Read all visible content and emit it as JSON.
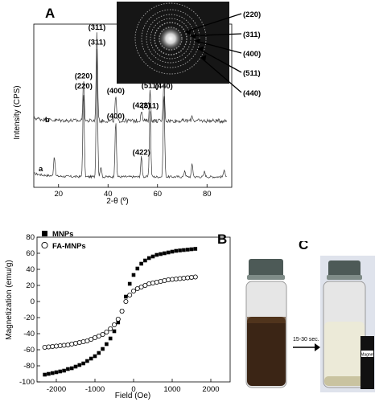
{
  "panels": {
    "A": "A",
    "B": "B",
    "C": "C"
  },
  "chart_data": [
    {
      "type": "line",
      "panel": "A",
      "xlabel": "2-θ (º)",
      "ylabel": "Intensity (CPS)",
      "xlim": [
        10,
        90
      ],
      "xticks": [
        20,
        40,
        60,
        80
      ],
      "series": [
        {
          "name": "a",
          "peaks": [
            {
              "x": 18.3,
              "h": 0.15
            },
            {
              "x": 30.1,
              "h": 0.65,
              "label": "(220)"
            },
            {
              "x": 35.5,
              "h": 0.98,
              "label": "(311)"
            },
            {
              "x": 37.1,
              "h": 0.08
            },
            {
              "x": 43.1,
              "h": 0.42,
              "label": "(400)"
            },
            {
              "x": 53.5,
              "h": 0.15,
              "label": "(422)"
            },
            {
              "x": 57.0,
              "h": 0.5,
              "label": "(511)"
            },
            {
              "x": 62.6,
              "h": 0.65,
              "label": "(440)"
            },
            {
              "x": 71.0,
              "h": 0.05
            },
            {
              "x": 74.0,
              "h": 0.1
            },
            {
              "x": 79.0,
              "h": 0.04
            },
            {
              "x": 87.0,
              "h": 0.06
            }
          ]
        },
        {
          "name": "b",
          "peaks": [
            {
              "x": 30.1,
              "h": 0.45,
              "label": "(220)"
            },
            {
              "x": 35.5,
              "h": 1.0,
              "label": "(311)"
            },
            {
              "x": 43.1,
              "h": 0.28,
              "label": "(400)"
            },
            {
              "x": 53.5,
              "h": 0.12,
              "label": "(422)"
            },
            {
              "x": 57.0,
              "h": 0.34,
              "label": "(511)"
            },
            {
              "x": 62.6,
              "h": 0.47,
              "label": "(440)"
            },
            {
              "x": 74.0,
              "h": 0.06
            }
          ]
        }
      ],
      "inset": {
        "rings": [
          "(220)",
          "(311)",
          "(400)",
          "(511)",
          "(440)"
        ]
      }
    },
    {
      "type": "scatter",
      "panel": "B",
      "xlabel": "Field (Oe)",
      "ylabel": "Magnetization (emu/g)",
      "xlim": [
        -2500,
        2500
      ],
      "ylim": [
        -100,
        80
      ],
      "xticks": [
        -2000,
        -1000,
        0,
        1000,
        2000
      ],
      "yticks": [
        -100,
        -80,
        -60,
        -40,
        -20,
        0,
        20,
        40,
        60,
        80
      ],
      "legend": "top-left",
      "series": [
        {
          "name": "MNPs",
          "marker": "filled-square",
          "x": [
            -2300,
            -2200,
            -2100,
            -2000,
            -1900,
            -1800,
            -1700,
            -1600,
            -1500,
            -1400,
            -1300,
            -1200,
            -1100,
            -1000,
            -900,
            -800,
            -700,
            -600,
            -500,
            -400,
            -300,
            -200,
            -100,
            0,
            100,
            200,
            300,
            400,
            500,
            600,
            700,
            800,
            900,
            1000,
            1100,
            1200,
            1300,
            1400,
            1500,
            1600
          ],
          "y": [
            -91,
            -90,
            -89,
            -88,
            -87,
            -86,
            -84,
            -83,
            -81,
            -79,
            -77,
            -74,
            -71,
            -68,
            -64,
            -59,
            -53,
            -46,
            -37,
            -26,
            -12,
            6,
            22,
            33,
            41,
            47,
            51,
            54,
            56,
            58,
            59,
            60,
            61,
            62,
            63,
            63.5,
            64,
            64.5,
            65,
            65.5
          ]
        },
        {
          "name": "FA-MNPs",
          "marker": "open-circle",
          "x": [
            -2300,
            -2200,
            -2100,
            -2000,
            -1900,
            -1800,
            -1700,
            -1600,
            -1500,
            -1400,
            -1300,
            -1200,
            -1100,
            -1000,
            -900,
            -800,
            -700,
            -600,
            -500,
            -400,
            -300,
            -200,
            -100,
            0,
            100,
            200,
            300,
            400,
            500,
            600,
            700,
            800,
            900,
            1000,
            1100,
            1200,
            1300,
            1400,
            1500,
            1600
          ],
          "y": [
            -57,
            -56.5,
            -56,
            -55.5,
            -55,
            -54.5,
            -54,
            -53,
            -52,
            -51,
            -50,
            -49,
            -47,
            -45,
            -43,
            -41,
            -38,
            -34,
            -29,
            -22,
            -12,
            0,
            8,
            13,
            16,
            18,
            20,
            22,
            23,
            24,
            25,
            26,
            27,
            27.5,
            28,
            28.5,
            29,
            29.5,
            30,
            30.5
          ]
        }
      ]
    }
  ],
  "photos": {
    "arrow_label": "15-30 sec.",
    "magnet_label": "Magnet"
  }
}
